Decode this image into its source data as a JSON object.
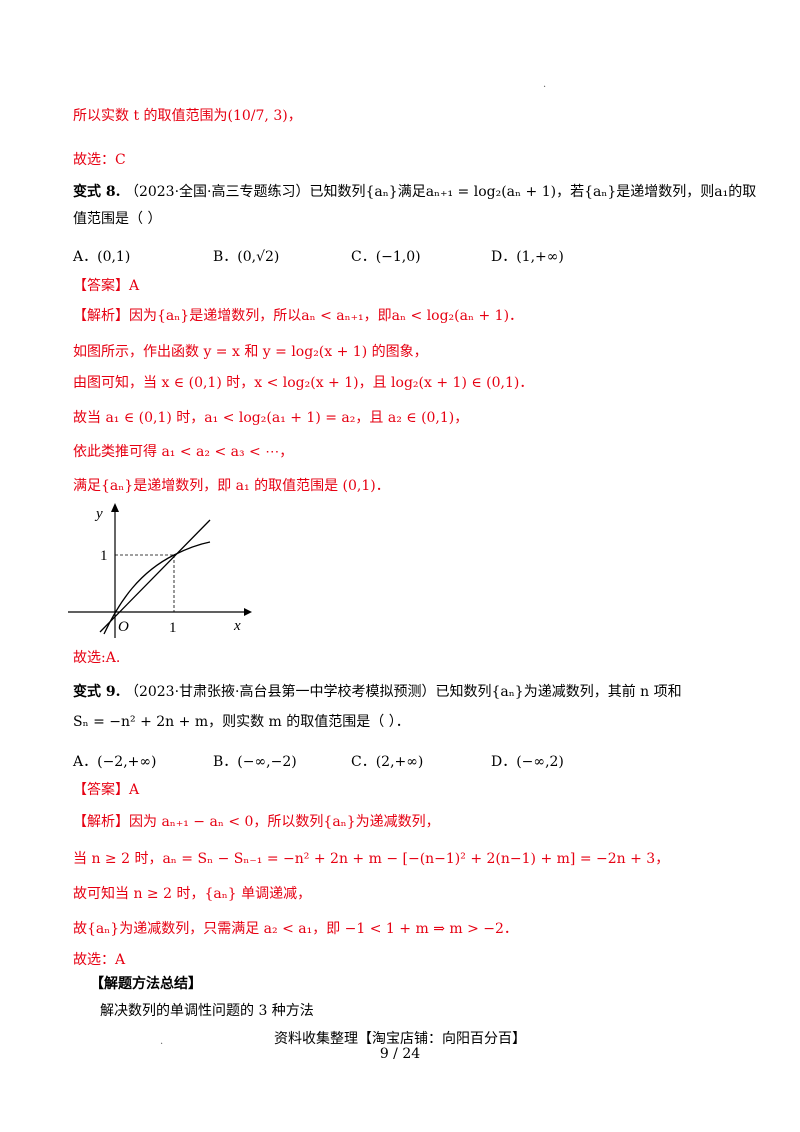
{
  "header_dot": "·",
  "lines": {
    "l1": "所以实数 t 的取值范围为(10/7, 3)，",
    "l2": "故选：C",
    "v8_title": "变式 8.",
    "v8_text": "（2023·全国·高三专题练习）已知数列{aₙ}满足aₙ₊₁ = log₂(aₙ + 1)，若{aₙ}是递增数列，则a₁的取",
    "v8_text2": "值范围是（    ）",
    "ans8": "【答案】A",
    "ex1": "【解析】因为{aₙ}是递增数列，所以aₙ < aₙ₊₁，即aₙ < log₂(aₙ + 1)．",
    "ex2": "如图所示，作出函数 y = x 和 y = log₂(x + 1) 的图象，",
    "ex3": "由图可知，当 x ∈ (0,1) 时，x < log₂(x + 1)，且 log₂(x + 1) ∈ (0,1)．",
    "ex4": "故当 a₁ ∈ (0,1) 时，a₁ < log₂(a₁ + 1) = a₂，且 a₂ ∈ (0,1)，",
    "ex5": "依此类推可得 a₁ < a₂ < a₃ < ⋯，",
    "ex6": "满足{aₙ}是递增数列，即 a₁ 的取值范围是 (0,1)．",
    "sel8": "故选:A.",
    "v9_title": "变式 9.",
    "v9_text": "（2023·甘肃张掖·高台县第一中学校考模拟预测）已知数列{aₙ}为递减数列，其前 n 项和",
    "v9_text2": "Sₙ = −n² + 2n + m，则实数 m 的取值范围是（    ）．",
    "ans9": "【答案】A",
    "ex9_1": "【解析】因为 aₙ₊₁ − aₙ < 0，所以数列{aₙ}为递减数列，",
    "ex9_2": "当 n ≥ 2 时，aₙ = Sₙ − Sₙ₋₁ = −n² + 2n + m − [−(n−1)² + 2(n−1) + m] = −2n + 3，",
    "ex9_3": "故可知当 n ≥ 2 时，{aₙ} 单调递减，",
    "ex9_4": "故{aₙ}为递减数列，只需满足 a₂ < a₁，即 −1 < 1 + m ⇒ m > −2．",
    "sel9": "故选：A",
    "summary_title": "【解题方法总结】",
    "summary_text": "解决数列的单调性问题的 3 种方法"
  },
  "options8": [
    "A．(0,1)",
    "B．(0,√2)",
    "C．(−1,0)",
    "D．(1,+∞)"
  ],
  "options9": [
    "A．(−2,+∞)",
    "B．(−∞,−2)",
    "C．(2,+∞)",
    "D．(−∞,2)"
  ],
  "graph": {
    "y_label": "y",
    "x_label": "x",
    "origin_label": "O",
    "tick_x": "1",
    "tick_y": "1"
  },
  "footer": {
    "source": "资料收集整理【淘宝店铺：向阳百分百】",
    "page": "9 / 24",
    "dot": "."
  },
  "colors": {
    "answer_red": "#e60012"
  }
}
